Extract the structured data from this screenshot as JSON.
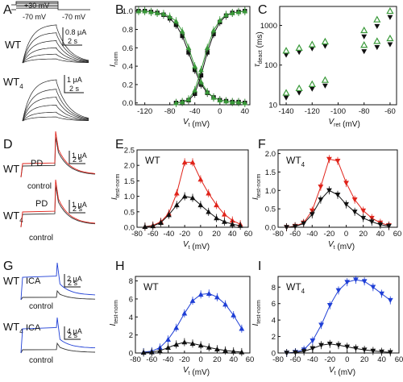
{
  "panel_letters": {
    "A": "A",
    "B": "B",
    "C": "C",
    "D": "D",
    "E": "E",
    "F": "F",
    "G": "G",
    "H": "H",
    "I": "I"
  },
  "trace_labels": {
    "A_top_wt": "WT",
    "A_bot_wt4": "WT",
    "A_bot_sub": "4",
    "D_top_wt": "WT",
    "D_bot_wt4": "WT",
    "D_bot_sub": "4",
    "D_top_pd": "PD",
    "D_top_control": "control",
    "D_bot_pd": "PD",
    "D_bot_control": "control",
    "G_top_wt": "WT",
    "G_bot_wt4": "WT",
    "G_bot_sub": "4",
    "G_top_ica": "ICA",
    "G_top_control": "control",
    "G_bot_ica": "ICA",
    "G_bot_control": "control"
  },
  "protocol_labels": {
    "v_plus30": "+30 mV",
    "v_minus70_left": "-70 mV",
    "v_minus70_right": "-70 mV"
  },
  "scalebars": {
    "A_top": {
      "current": "0.8 μA",
      "time": "2 s"
    },
    "A_bot": {
      "current": "1 μA",
      "time": "2 s"
    },
    "D_top": {
      "current": "1 μA",
      "time": "2 s"
    },
    "D_bot": {
      "current": "1 μA",
      "time": "2 s"
    },
    "G_top": {
      "current": "2 μA",
      "time": "2 s"
    },
    "G_bot": {
      "current": "4 μA",
      "time": "2 s"
    }
  },
  "colors": {
    "black": "#111111",
    "green": "#3a9a3a",
    "red": "#e0241b",
    "blue": "#1f3fd6",
    "trace_gray": "#333333"
  },
  "chart_data": [
    {
      "panel": "B",
      "type": "line",
      "xlabel": "V_t (mV)",
      "ylabel": "I_norm",
      "xlim": [
        -135,
        48
      ],
      "ylim": [
        -0.02,
        1.05
      ],
      "xticks": [
        -120,
        -80,
        -40,
        0,
        40
      ],
      "yticks": [
        0.0,
        0.2,
        0.4,
        0.6,
        0.8,
        1.0
      ],
      "series": [
        {
          "color": "#111111",
          "marker": "square",
          "x": [
            -130,
            -120,
            -110,
            -100,
            -90,
            -80,
            -70,
            -60,
            -50,
            -40,
            -30,
            -20,
            -10,
            0,
            10,
            20,
            30,
            40
          ],
          "y": [
            1.0,
            1.0,
            0.99,
            0.98,
            0.96,
            0.92,
            0.85,
            0.73,
            0.55,
            0.36,
            0.2,
            0.11,
            0.06,
            0.03,
            0.02,
            0.01,
            0.01,
            0.0
          ]
        },
        {
          "color": "#3a9a3a",
          "marker": "triangle",
          "x": [
            -130,
            -120,
            -110,
            -100,
            -90,
            -80,
            -70,
            -60,
            -50,
            -40,
            -30,
            -20,
            -10,
            0,
            10,
            20,
            30,
            40
          ],
          "y": [
            1.0,
            1.0,
            0.99,
            0.98,
            0.97,
            0.94,
            0.89,
            0.78,
            0.6,
            0.4,
            0.23,
            0.12,
            0.06,
            0.03,
            0.02,
            0.01,
            0.01,
            0.0
          ]
        },
        {
          "color": "#111111",
          "marker": "square",
          "x": [
            -70,
            -60,
            -50,
            -40,
            -30,
            -20,
            -10,
            0,
            10,
            20,
            30,
            40
          ],
          "y": [
            0.0,
            0.01,
            0.03,
            0.1,
            0.3,
            0.55,
            0.75,
            0.88,
            0.95,
            0.98,
            0.99,
            1.0
          ]
        },
        {
          "color": "#3a9a3a",
          "marker": "triangle",
          "x": [
            -70,
            -60,
            -50,
            -40,
            -30,
            -20,
            -10,
            0,
            10,
            20,
            30,
            40
          ],
          "y": [
            0.0,
            0.01,
            0.04,
            0.14,
            0.36,
            0.6,
            0.79,
            0.9,
            0.96,
            0.98,
            0.99,
            1.0
          ]
        }
      ]
    },
    {
      "panel": "C",
      "type": "scatter",
      "xlabel": "V_ret (mV)",
      "ylabel": "τ_deact (ms)",
      "xlim": [
        -145,
        -55
      ],
      "ylim": [
        10,
        3000
      ],
      "yscale": "log",
      "xticks": [
        -140,
        -120,
        -100,
        -80,
        -60
      ],
      "yticks": [
        10,
        100,
        1000
      ],
      "series": [
        {
          "color": "#111111",
          "marker": "triangle-down",
          "x": [
            -140,
            -130,
            -120,
            -110,
            -80,
            -70,
            -60
          ],
          "y": [
            180,
            210,
            260,
            300,
            520,
            950,
            1600
          ]
        },
        {
          "color": "#3a9a3a",
          "marker": "triangle-up",
          "x": [
            -140,
            -130,
            -120,
            -110,
            -80,
            -70,
            -60
          ],
          "y": [
            230,
            270,
            330,
            390,
            750,
            1400,
            2300
          ]
        },
        {
          "color": "#111111",
          "marker": "triangle-down",
          "x": [
            -140,
            -130,
            -120,
            -110,
            -80,
            -70,
            -60
          ],
          "y": [
            15,
            20,
            25,
            30,
            220,
            280,
            330
          ]
        },
        {
          "color": "#3a9a3a",
          "marker": "triangle-up",
          "x": [
            -140,
            -130,
            -120,
            -110,
            -80,
            -70,
            -60
          ],
          "y": [
            20,
            26,
            33,
            42,
            320,
            400,
            470
          ]
        }
      ]
    },
    {
      "panel": "E",
      "type": "line",
      "title": "WT",
      "xlabel": "V_t (mV)",
      "ylabel": "I_test-norm",
      "xlim": [
        -80,
        60
      ],
      "ylim": [
        0,
        2.5
      ],
      "xticks": [
        -80,
        -60,
        -40,
        -20,
        0,
        20,
        40,
        60
      ],
      "yticks": [
        0.0,
        0.5,
        1.0,
        1.5,
        2.0,
        2.5
      ],
      "x": [
        -70,
        -60,
        -50,
        -40,
        -30,
        -20,
        -10,
        0,
        10,
        20,
        30,
        40,
        50
      ],
      "series": [
        {
          "color": "#e0241b",
          "marker": "triangle-up",
          "y": [
            0.02,
            0.06,
            0.18,
            0.45,
            1.1,
            2.1,
            2.1,
            1.55,
            1.1,
            0.72,
            0.42,
            0.22,
            0.1
          ]
        },
        {
          "color": "#111111",
          "marker": "triangle-up",
          "y": [
            0.02,
            0.04,
            0.15,
            0.4,
            0.72,
            1.0,
            0.95,
            0.72,
            0.5,
            0.3,
            0.18,
            0.1,
            0.05
          ]
        }
      ]
    },
    {
      "panel": "F",
      "type": "line",
      "title": "WT4",
      "xlabel": "V_t (mV)",
      "ylabel": "I_test-norm",
      "xlim": [
        -80,
        60
      ],
      "ylim": [
        0,
        2.1
      ],
      "xticks": [
        -80,
        -60,
        -40,
        -20,
        0,
        20,
        40,
        60
      ],
      "yticks": [
        0.0,
        0.5,
        1.0,
        1.5,
        2.0
      ],
      "x": [
        -70,
        -60,
        -50,
        -40,
        -30,
        -20,
        -10,
        0,
        10,
        20,
        30,
        40,
        50
      ],
      "series": [
        {
          "color": "#e0241b",
          "marker": "triangle-down",
          "y": [
            0.0,
            0.03,
            0.12,
            0.45,
            1.1,
            1.85,
            1.8,
            1.2,
            0.75,
            0.45,
            0.25,
            0.12,
            0.05
          ]
        },
        {
          "color": "#111111",
          "marker": "triangle-down",
          "y": [
            0.0,
            0.02,
            0.1,
            0.35,
            0.75,
            1.0,
            0.88,
            0.62,
            0.42,
            0.25,
            0.15,
            0.07,
            0.03
          ]
        }
      ]
    },
    {
      "panel": "H",
      "type": "line",
      "title": "WT",
      "xlabel": "V_t (mV)",
      "ylabel": "I_test-norm",
      "xlim": [
        -80,
        60
      ],
      "ylim": [
        0,
        8.5
      ],
      "xticks": [
        -80,
        -60,
        -40,
        -20,
        0,
        20,
        40,
        60
      ],
      "yticks": [
        0,
        2,
        4,
        6,
        8
      ],
      "x": [
        -70,
        -60,
        -50,
        -40,
        -30,
        -20,
        -10,
        0,
        10,
        20,
        30,
        40,
        50
      ],
      "series": [
        {
          "color": "#1f3fd6",
          "marker": "triangle-up",
          "y": [
            0.1,
            0.2,
            0.6,
            1.5,
            2.8,
            4.4,
            5.8,
            6.5,
            6.6,
            6.2,
            5.4,
            4.2,
            2.7
          ]
        },
        {
          "color": "#111111",
          "marker": "triangle-up",
          "y": [
            0.05,
            0.1,
            0.25,
            0.6,
            0.95,
            1.2,
            1.05,
            0.85,
            0.62,
            0.42,
            0.28,
            0.18,
            0.1
          ]
        }
      ]
    },
    {
      "panel": "I",
      "type": "line",
      "title": "WT4",
      "xlabel": "V_t (mV)",
      "ylabel": "I_test-norm",
      "xlim": [
        -80,
        60
      ],
      "ylim": [
        0,
        9.3
      ],
      "xticks": [
        -80,
        -60,
        -40,
        -20,
        0,
        20,
        40,
        60
      ],
      "yticks": [
        0,
        2,
        4,
        6,
        8
      ],
      "x": [
        -70,
        -60,
        -50,
        -40,
        -30,
        -20,
        -10,
        0,
        10,
        20,
        30,
        40,
        50
      ],
      "series": [
        {
          "color": "#1f3fd6",
          "marker": "triangle-down",
          "y": [
            0.0,
            0.1,
            0.4,
            1.5,
            3.4,
            5.8,
            7.6,
            8.6,
            8.9,
            8.7,
            8.0,
            7.2,
            6.4
          ]
        },
        {
          "color": "#111111",
          "marker": "triangle-down",
          "y": [
            0.0,
            0.05,
            0.2,
            0.55,
            0.95,
            1.1,
            0.95,
            0.75,
            0.55,
            0.38,
            0.25,
            0.15,
            0.08
          ]
        }
      ]
    }
  ]
}
